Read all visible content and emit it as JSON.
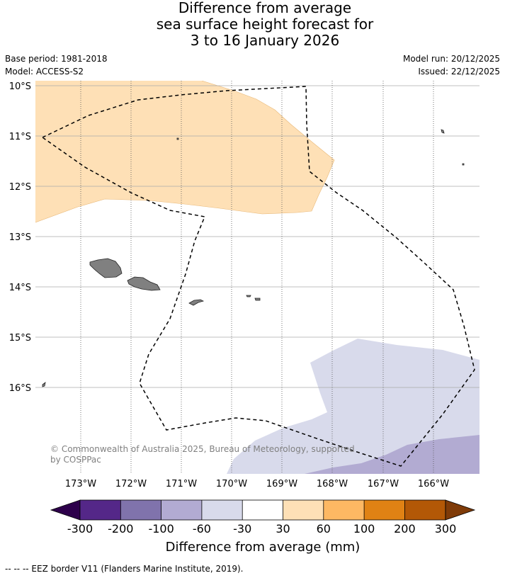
{
  "title": {
    "line1": "Difference from average",
    "line2": "sea surface height forecast for",
    "line3": "3 to 16 January 2026"
  },
  "meta": {
    "base_period": "Base period: 1981-2018",
    "model": "Model: ACCESS-S2",
    "model_run": "Model run: 20/12/2025",
    "issued": "Issued: 22/12/2025"
  },
  "map": {
    "lat_labels": [
      "10°S",
      "11°S",
      "12°S",
      "13°S",
      "14°S",
      "15°S",
      "16°S"
    ],
    "lon_labels": [
      "173°W",
      "172°W",
      "171°W",
      "170°W",
      "169°W",
      "168°W",
      "167°W",
      "166°W"
    ],
    "copyright_line1": "© Commonwealth of Australia 2025, Bureau of Meteorology, supported",
    "copyright_line2": "by COSPPac",
    "colors": {
      "anomaly_30_60": "#fee0b6",
      "anomaly_neg30_neg60": "#d8daeb",
      "anomaly_neg60_neg100": "#b2abd2",
      "land": "#808080",
      "gridline": "#aaaaaa"
    }
  },
  "colorbar": {
    "ticks": [
      "-300",
      "-200",
      "-100",
      "-60",
      "-30",
      "30",
      "60",
      "100",
      "200",
      "300"
    ],
    "low_extension_color": "#2d004b",
    "segment_colors": [
      "#542788",
      "#8073ac",
      "#b2abd2",
      "#d8daeb",
      "#ffffff",
      "#fee0b6",
      "#fdb863",
      "#e08214",
      "#b35806"
    ],
    "high_extension_color": "#7f3b08",
    "label": "Difference from average (mm)"
  },
  "footer": {
    "legend_text": "-- -- -- EEZ border V11 (Flanders Marine Institute, 2019)."
  }
}
